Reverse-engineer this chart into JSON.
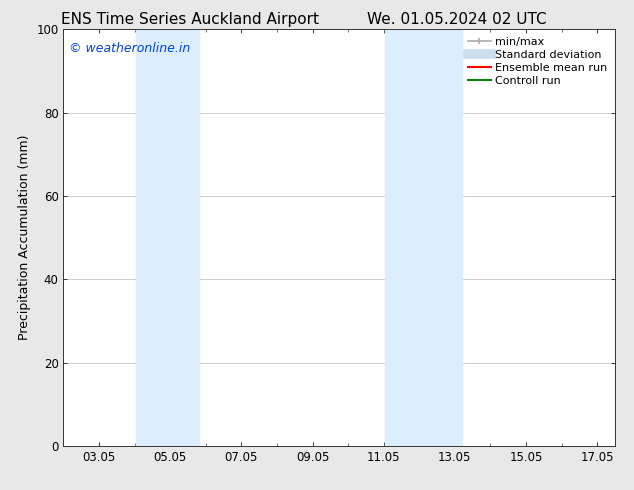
{
  "title_left": "ENS Time Series Auckland Airport",
  "title_right": "We. 01.05.2024 02 UTC",
  "ylabel": "Precipitation Accumulation (mm)",
  "watermark": "© weatheronline.in",
  "watermark_color": "#0044cc",
  "ylim": [
    0,
    100
  ],
  "xlim_start": 2.0,
  "xlim_end": 17.5,
  "xtick_labels": [
    "03.05",
    "05.05",
    "07.05",
    "09.05",
    "11.05",
    "13.05",
    "15.05",
    "17.05"
  ],
  "xtick_positions": [
    3.0,
    5.0,
    7.0,
    9.0,
    11.0,
    13.0,
    15.0,
    17.0
  ],
  "ytick_positions": [
    0,
    20,
    40,
    60,
    80,
    100
  ],
  "shaded_bands": [
    {
      "x_start": 4.05,
      "x_end": 5.8,
      "color": "#daeeff"
    },
    {
      "x_start": 11.05,
      "x_end": 13.2,
      "color": "#daeeff"
    }
  ],
  "legend_items": [
    {
      "label": "min/max",
      "color": "#aaaaaa",
      "linewidth": 1.2,
      "type": "line_short"
    },
    {
      "label": "Standard deviation",
      "color": "#ccddee",
      "linewidth": 7,
      "type": "line_thick"
    },
    {
      "label": "Ensemble mean run",
      "color": "#ff0000",
      "linewidth": 1.5,
      "type": "line"
    },
    {
      "label": "Controll run",
      "color": "#008800",
      "linewidth": 1.5,
      "type": "line"
    }
  ],
  "background_color": "#e8e8e8",
  "plot_background_color": "#ffffff",
  "grid_color": "#bbbbbb",
  "title_fontsize": 11,
  "label_fontsize": 9,
  "tick_fontsize": 8.5,
  "watermark_fontsize": 9,
  "legend_fontsize": 8
}
